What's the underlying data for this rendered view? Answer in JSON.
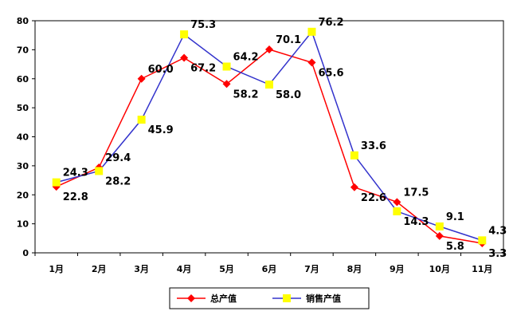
{
  "chart_data": {
    "type": "line",
    "title": "",
    "xlabel": "",
    "ylabel": "",
    "categories": [
      "1月",
      "2月",
      "3月",
      "4月",
      "5月",
      "6月",
      "7月",
      "8月",
      "9月",
      "10月",
      "11月"
    ],
    "ylim": [
      0,
      80
    ],
    "yticks": [
      0,
      10,
      20,
      30,
      40,
      50,
      60,
      70,
      80
    ],
    "grid": false,
    "legend_position": "bottom",
    "series": [
      {
        "name": "总产值",
        "color": "#ff0000",
        "marker": "diamond",
        "values": [
          22.8,
          29.4,
          60.0,
          67.2,
          58.2,
          70.1,
          65.6,
          22.6,
          17.5,
          5.8,
          3.3
        ]
      },
      {
        "name": "销售产值",
        "color": "#3333cc",
        "marker_color": "#ffff00",
        "marker": "square",
        "values": [
          24.3,
          28.2,
          45.9,
          75.3,
          64.2,
          58.0,
          76.2,
          33.6,
          14.3,
          9.1,
          4.3
        ]
      }
    ]
  }
}
